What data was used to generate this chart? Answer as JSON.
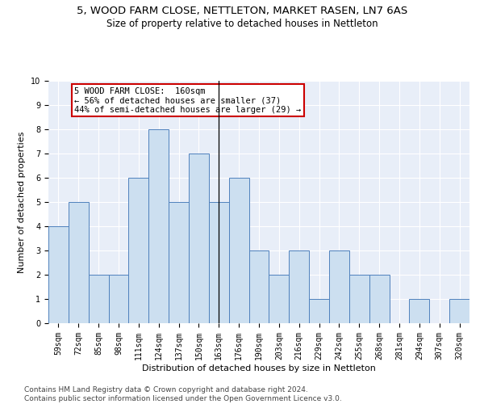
{
  "title1": "5, WOOD FARM CLOSE, NETTLETON, MARKET RASEN, LN7 6AS",
  "title2": "Size of property relative to detached houses in Nettleton",
  "xlabel": "Distribution of detached houses by size in Nettleton",
  "ylabel": "Number of detached properties",
  "categories": [
    "59sqm",
    "72sqm",
    "85sqm",
    "98sqm",
    "111sqm",
    "124sqm",
    "137sqm",
    "150sqm",
    "163sqm",
    "176sqm",
    "190sqm",
    "203sqm",
    "216sqm",
    "229sqm",
    "242sqm",
    "255sqm",
    "268sqm",
    "281sqm",
    "294sqm",
    "307sqm",
    "320sqm"
  ],
  "values": [
    4,
    5,
    2,
    2,
    6,
    8,
    5,
    7,
    5,
    6,
    3,
    2,
    3,
    1,
    3,
    2,
    2,
    0,
    1,
    0,
    1
  ],
  "bar_color": "#ccdff0",
  "bar_edge_color": "#4f81bd",
  "highlight_index": 8,
  "highlight_line_color": "#000000",
  "annotation_text": "5 WOOD FARM CLOSE:  160sqm\n← 56% of detached houses are smaller (37)\n44% of semi-detached houses are larger (29) →",
  "annotation_box_color": "#ffffff",
  "annotation_box_edge_color": "#cc0000",
  "ylim": [
    0,
    10
  ],
  "yticks": [
    0,
    1,
    2,
    3,
    4,
    5,
    6,
    7,
    8,
    9,
    10
  ],
  "background_color": "#e8eef8",
  "footer_text": "Contains HM Land Registry data © Crown copyright and database right 2024.\nContains public sector information licensed under the Open Government Licence v3.0.",
  "title1_fontsize": 9.5,
  "title2_fontsize": 8.5,
  "axis_label_fontsize": 8,
  "tick_fontsize": 7,
  "footer_fontsize": 6.5,
  "annotation_fontsize": 7.5
}
